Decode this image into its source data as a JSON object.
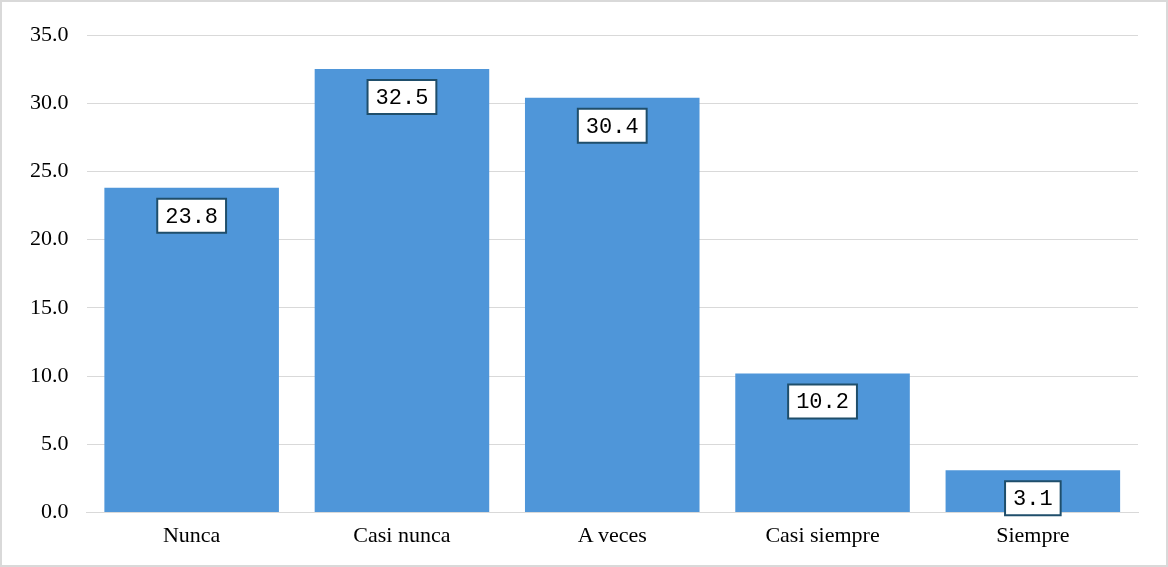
{
  "chart_data": {
    "type": "bar",
    "categories": [
      "Nunca",
      "Casi nunca",
      "A veces",
      "Casi siempre",
      "Siempre"
    ],
    "values": [
      23.8,
      32.5,
      30.4,
      10.2,
      3.1
    ],
    "color": "#4f96d9",
    "ylim": [
      0,
      35
    ],
    "yticks": [
      {
        "value": 0,
        "label": "0.0"
      },
      {
        "value": 5,
        "label": "5.0"
      },
      {
        "value": 10,
        "label": "10.0"
      },
      {
        "value": 15,
        "label": "15.0"
      },
      {
        "value": 20,
        "label": "20.0"
      },
      {
        "value": 25,
        "label": "25.0"
      },
      {
        "value": 30,
        "label": "30.0"
      },
      {
        "value": 35,
        "label": "35.0"
      }
    ],
    "grid": "y",
    "data_labels": true
  }
}
